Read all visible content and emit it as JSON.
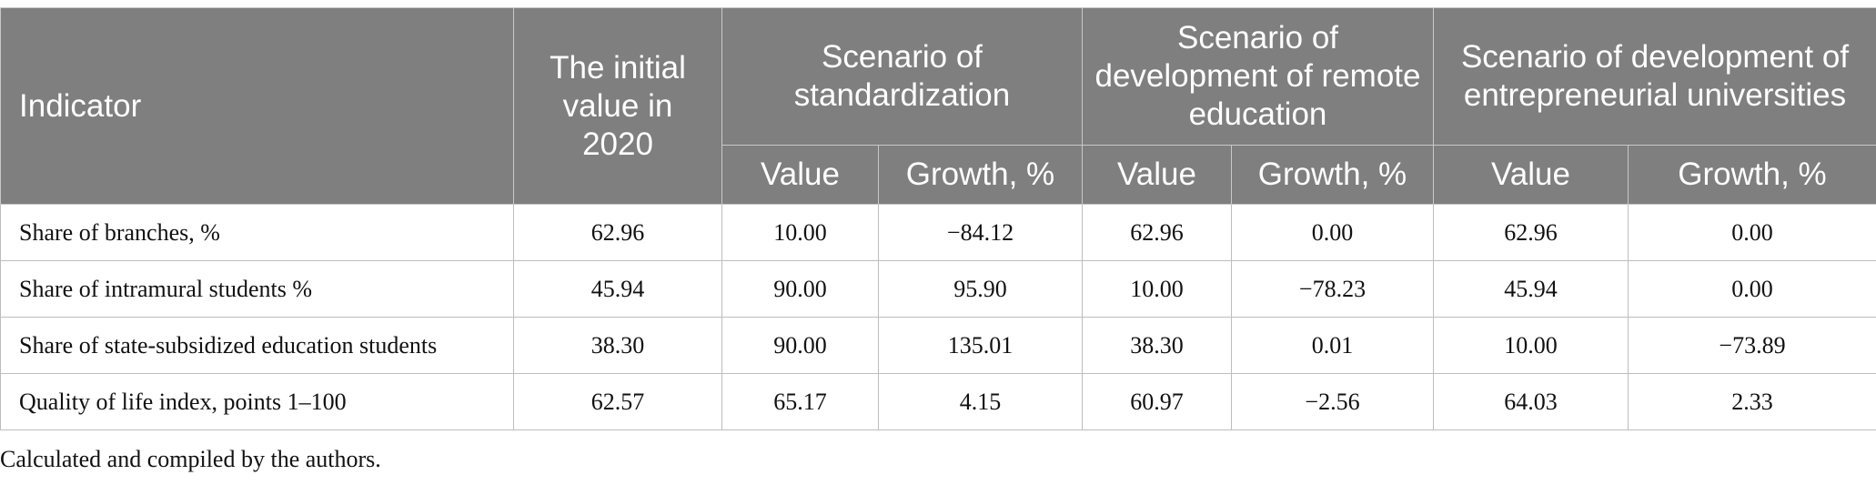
{
  "table": {
    "headers": {
      "indicator": "Indicator",
      "initial": "The initial value in 2020",
      "groups": [
        "Scenario of standardization",
        "Scenario of development of remote education",
        "Scenario of development of entrepreneurial universities"
      ],
      "value": "Value",
      "growth": "Growth, %"
    },
    "rows": [
      {
        "cells": [
          "Share of branches, %",
          "62.96",
          "10.00",
          "−84.12",
          "62.96",
          "0.00",
          "62.96",
          "0.00"
        ]
      },
      {
        "cells": [
          "Share of intramural students %",
          "45.94",
          "90.00",
          "95.90",
          "10.00",
          "−78.23",
          "45.94",
          "0.00"
        ]
      },
      {
        "cells": [
          "Share of state-subsidized education students",
          "38.30",
          "90.00",
          "135.01",
          "38.30",
          "0.01",
          "10.00",
          "−73.89"
        ]
      },
      {
        "cells": [
          "Quality of life index, points 1–100",
          "62.57",
          "65.17",
          "4.15",
          "60.97",
          "−2.56",
          "64.03",
          "2.33"
        ]
      }
    ]
  },
  "footnote": "Calculated and compiled by the authors."
}
